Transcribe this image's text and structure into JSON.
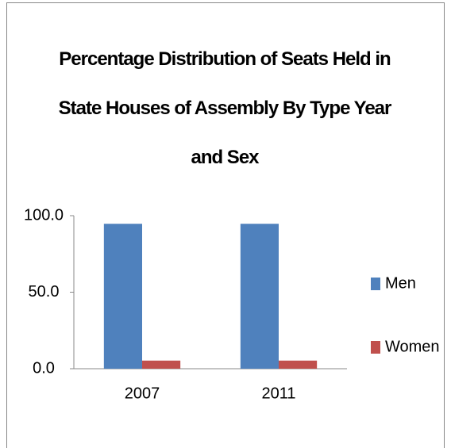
{
  "chart_data": {
    "type": "bar",
    "title": "Percentage Distribution of Seats Held in State Houses of Assembly By Type Year and Sex",
    "categories": [
      "2007",
      "2011"
    ],
    "series": [
      {
        "name": "Men",
        "color": "#4f81bd",
        "values": [
          94.7,
          94.7
        ]
      },
      {
        "name": "Women",
        "color": "#c0504d",
        "values": [
          5.3,
          5.3
        ]
      }
    ],
    "ylim": [
      0,
      100
    ],
    "yticks": [
      {
        "value": 0,
        "label": "0.0"
      },
      {
        "value": 50,
        "label": "50.0"
      },
      {
        "value": 100,
        "label": "100.0"
      }
    ],
    "grid": false,
    "legend": "right"
  }
}
